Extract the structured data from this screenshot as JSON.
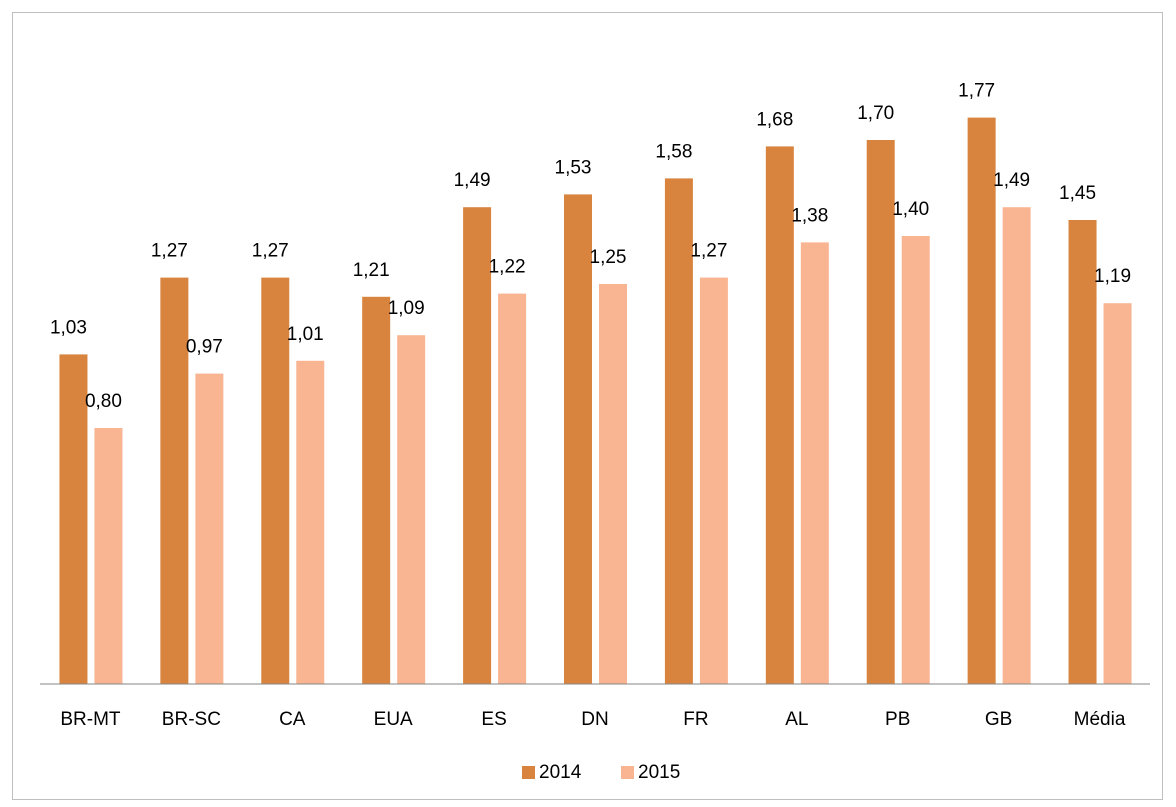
{
  "chart_data": {
    "type": "bar",
    "categories": [
      "BR-MT",
      "BR-SC",
      "CA",
      "EUA",
      "ES",
      "DN",
      "FR",
      "AL",
      "PB",
      "GB",
      "Média"
    ],
    "series": [
      {
        "name": "2014",
        "color": "#d9843e",
        "values": [
          1.03,
          1.27,
          1.27,
          1.21,
          1.49,
          1.53,
          1.58,
          1.68,
          1.7,
          1.77,
          1.45
        ],
        "value_labels": [
          "1,03",
          "1,27",
          "1,27",
          "1,21",
          "1,49",
          "1,53",
          "1,58",
          "1,68",
          "1,70",
          "1,77",
          "1,45"
        ]
      },
      {
        "name": "2015",
        "color": "#f9b592",
        "values": [
          0.8,
          0.97,
          1.01,
          1.09,
          1.22,
          1.25,
          1.27,
          1.38,
          1.4,
          1.49,
          1.19
        ],
        "value_labels": [
          "0,80",
          "0,97",
          "1,01",
          "1,09",
          "1,22",
          "1,25",
          "1,27",
          "1,38",
          "1,40",
          "1,49",
          "1,19"
        ]
      }
    ],
    "ylim": [
      0,
      2
    ],
    "legend": "bottom"
  }
}
